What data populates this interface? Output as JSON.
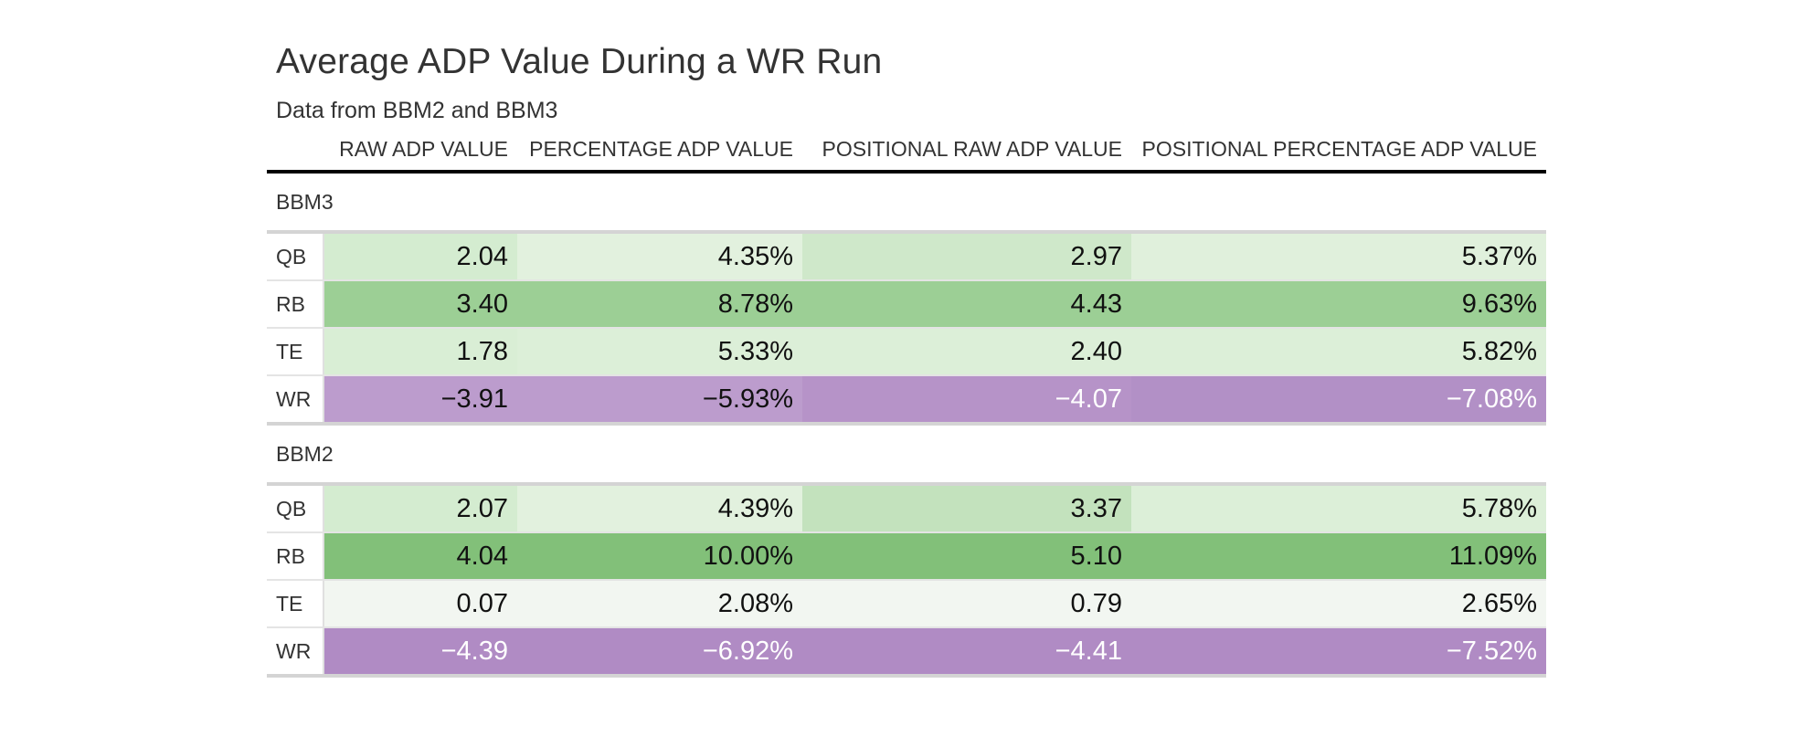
{
  "chart_data": {
    "type": "table",
    "title": "Average ADP Value During a WR Run",
    "subtitle": "Data from BBM2 and BBM3",
    "columns": [
      "RAW ADP VALUE",
      "PERCENTAGE ADP VALUE",
      "POSITIONAL RAW ADP VALUE",
      "POSITIONAL PERCENTAGE ADP VALUE"
    ],
    "groups": [
      {
        "name": "BBM3",
        "rows": [
          {
            "label": "QB",
            "cells": [
              {
                "text": "2.04",
                "bg": "#d4ecd0",
                "fg": "#111111"
              },
              {
                "text": "4.35%",
                "bg": "#e2f1de",
                "fg": "#111111"
              },
              {
                "text": "2.97",
                "bg": "#cfe8ca",
                "fg": "#111111"
              },
              {
                "text": "5.37%",
                "bg": "#e0f0dc",
                "fg": "#111111"
              }
            ]
          },
          {
            "label": "RB",
            "cells": [
              {
                "text": "3.40",
                "bg": "#9ccf95",
                "fg": "#111111"
              },
              {
                "text": "8.78%",
                "bg": "#9ccf95",
                "fg": "#111111"
              },
              {
                "text": "4.43",
                "bg": "#9ccf95",
                "fg": "#111111"
              },
              {
                "text": "9.63%",
                "bg": "#9ccf95",
                "fg": "#111111"
              }
            ]
          },
          {
            "label": "TE",
            "cells": [
              {
                "text": "1.78",
                "bg": "#d9eed5",
                "fg": "#111111"
              },
              {
                "text": "5.33%",
                "bg": "#dcefd8",
                "fg": "#111111"
              },
              {
                "text": "2.40",
                "bg": "#dcefd8",
                "fg": "#111111"
              },
              {
                "text": "5.82%",
                "bg": "#dcefd8",
                "fg": "#111111"
              }
            ]
          },
          {
            "label": "WR",
            "cells": [
              {
                "text": "−3.91",
                "bg": "#bc9ccd",
                "fg": "#111111"
              },
              {
                "text": "−5.93%",
                "bg": "#bc9ccd",
                "fg": "#111111"
              },
              {
                "text": "−4.07",
                "bg": "#b693c8",
                "fg": "#ffffff"
              },
              {
                "text": "−7.08%",
                "bg": "#b290c6",
                "fg": "#ffffff"
              }
            ]
          }
        ]
      },
      {
        "name": "BBM2",
        "rows": [
          {
            "label": "QB",
            "cells": [
              {
                "text": "2.07",
                "bg": "#d4ecd0",
                "fg": "#111111"
              },
              {
                "text": "4.39%",
                "bg": "#e2f1de",
                "fg": "#111111"
              },
              {
                "text": "3.37",
                "bg": "#c3e2bd",
                "fg": "#111111"
              },
              {
                "text": "5.78%",
                "bg": "#dcefd8",
                "fg": "#111111"
              }
            ]
          },
          {
            "label": "RB",
            "cells": [
              {
                "text": "4.04",
                "bg": "#82c079",
                "fg": "#111111"
              },
              {
                "text": "10.00%",
                "bg": "#82c079",
                "fg": "#111111"
              },
              {
                "text": "5.10",
                "bg": "#82c079",
                "fg": "#111111"
              },
              {
                "text": "11.09%",
                "bg": "#82c079",
                "fg": "#111111"
              }
            ]
          },
          {
            "label": "TE",
            "cells": [
              {
                "text": "0.07",
                "bg": "#f2f6f1",
                "fg": "#111111"
              },
              {
                "text": "2.08%",
                "bg": "#f2f6f1",
                "fg": "#111111"
              },
              {
                "text": "0.79",
                "bg": "#f2f6f1",
                "fg": "#111111"
              },
              {
                "text": "2.65%",
                "bg": "#f2f6f1",
                "fg": "#111111"
              }
            ]
          },
          {
            "label": "WR",
            "cells": [
              {
                "text": "−4.39",
                "bg": "#b08bc4",
                "fg": "#ffffff"
              },
              {
                "text": "−6.92%",
                "bg": "#b08bc4",
                "fg": "#ffffff"
              },
              {
                "text": "−4.41",
                "bg": "#b08bc4",
                "fg": "#ffffff"
              },
              {
                "text": "−7.52%",
                "bg": "#b08bc4",
                "fg": "#ffffff"
              }
            ]
          }
        ]
      }
    ]
  }
}
